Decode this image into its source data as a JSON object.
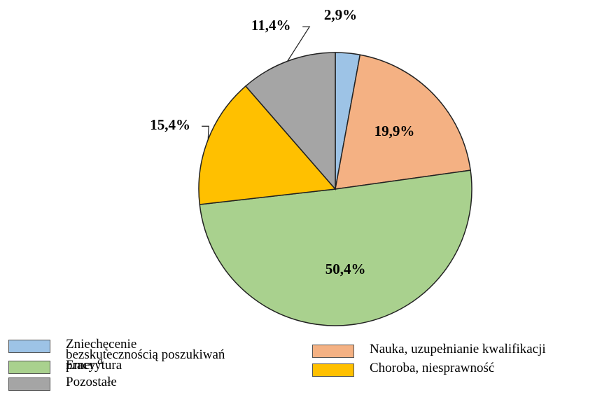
{
  "chart_data": {
    "type": "pie",
    "categories": [
      "Zniechęcenie bezskutecznością poszukiwań pracy",
      "Nauka, uzupełnianie kwalifikacji",
      "Emerytura",
      "Choroba, niesprawność",
      "Pozostałe"
    ],
    "category_superscripts": [
      "a",
      null,
      null,
      null,
      null
    ],
    "values": [
      2.9,
      19.9,
      50.4,
      15.4,
      11.4
    ],
    "value_labels": [
      "2,9%",
      "19,9%",
      "50,4%",
      "15,4%",
      "11,4%"
    ],
    "colors": [
      "#9dc3e6",
      "#f4b183",
      "#a9d18e",
      "#ffc000",
      "#a5a5a5"
    ]
  }
}
